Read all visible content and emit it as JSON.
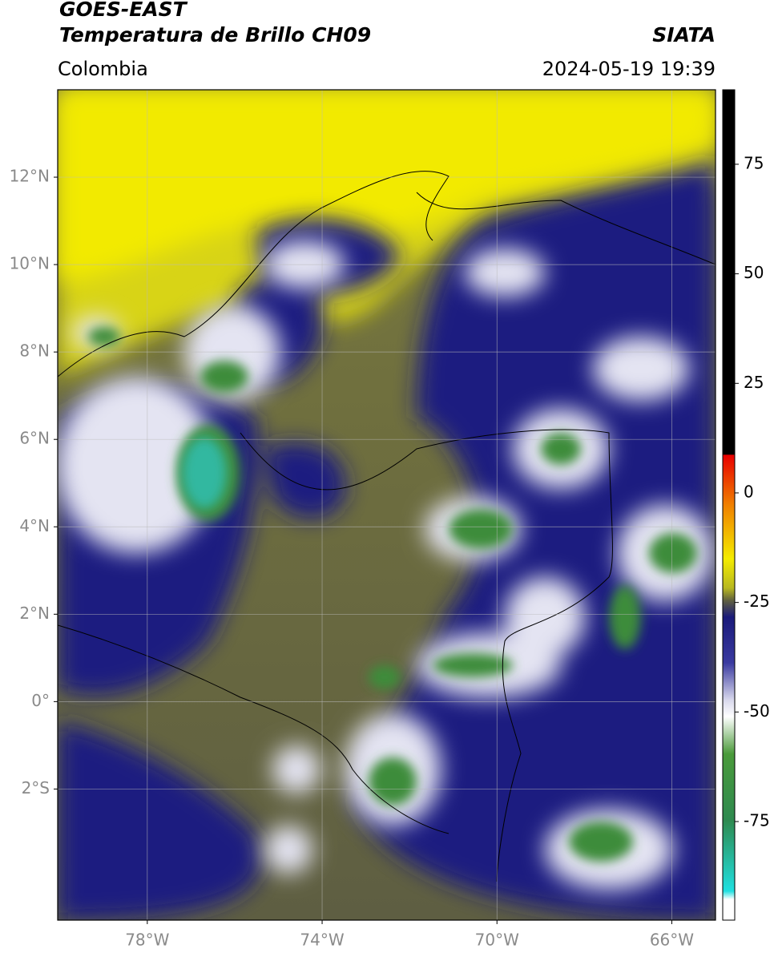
{
  "header": {
    "title_line1": "GOES-EAST",
    "title_line2": "Temperatura de Brillo CH09",
    "source": "SIATA",
    "region": "Colombia",
    "datetime": "2024-05-19 19:39"
  },
  "map": {
    "xlim": [
      -80.05,
      -65.0
    ],
    "ylim": [
      -5.0,
      14.0
    ],
    "xticks": [
      {
        "value": -78,
        "label": "78°W"
      },
      {
        "value": -74,
        "label": "74°W"
      },
      {
        "value": -70,
        "label": "70°W"
      },
      {
        "value": -66,
        "label": "66°W"
      }
    ],
    "yticks": [
      {
        "value": 12,
        "label": "12°N"
      },
      {
        "value": 10,
        "label": "10°N"
      },
      {
        "value": 8,
        "label": "8°N"
      },
      {
        "value": 6,
        "label": "6°N"
      },
      {
        "value": 4,
        "label": "4°N"
      },
      {
        "value": 2,
        "label": "2°N"
      },
      {
        "value": 0,
        "label": "0°"
      },
      {
        "value": -2,
        "label": "2°S"
      }
    ],
    "grid": true
  },
  "colorbar": {
    "lim": [
      -97.5,
      92
    ],
    "ticks": [
      75,
      50,
      25,
      0,
      -25,
      -50,
      -75
    ]
  }
}
